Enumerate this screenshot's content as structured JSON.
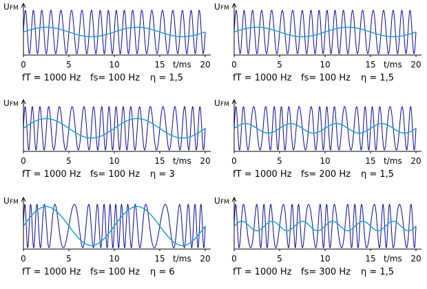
{
  "colors": {
    "carrier": "#0000a0",
    "modulating": "#1aa0c8",
    "axis": "#000000",
    "background": "#ffffff"
  },
  "chart_data": [
    {
      "type": "line",
      "title": "",
      "ylabel": "U",
      "ylabel_sub": "FM",
      "xlabel": "t/ms",
      "x_ticks": [
        "0",
        "5",
        "10",
        "15",
        "20"
      ],
      "xlim": [
        0,
        20
      ],
      "params": {
        "ft": 1000,
        "fs": 100,
        "eta": 1.5
      },
      "caption": {
        "ft": "fT = 1000 Hz",
        "fs": "fs= 100 Hz",
        "eta": "η = 1,5"
      },
      "series": [
        {
          "name": "FM carrier",
          "freq_hz": 1000
        },
        {
          "name": "modulating signal",
          "freq_hz": 100,
          "amplitude_fraction": 0.22
        }
      ]
    },
    {
      "type": "line",
      "title": "",
      "ylabel": "U",
      "ylabel_sub": "FM",
      "xlabel": "t/ms",
      "x_ticks": [
        "0",
        "5",
        "10",
        "15",
        "20"
      ],
      "xlim": [
        0,
        20
      ],
      "params": {
        "ft": 1000,
        "fs": 100,
        "eta": 1.5
      },
      "caption": {
        "ft": "fT = 1000 Hz",
        "fs": "fs= 100 Hz",
        "eta": "η = 1,5"
      },
      "series": [
        {
          "name": "FM carrier",
          "freq_hz": 1000
        },
        {
          "name": "modulating signal",
          "freq_hz": 100,
          "amplitude_fraction": 0.22
        }
      ]
    },
    {
      "type": "line",
      "title": "",
      "ylabel": "U",
      "ylabel_sub": "FM",
      "xlabel": "t/ms",
      "x_ticks": [
        "0",
        "5",
        "10",
        "15",
        "20"
      ],
      "xlim": [
        0,
        20
      ],
      "params": {
        "ft": 1000,
        "fs": 100,
        "eta": 3
      },
      "caption": {
        "ft": "fT = 1000 Hz",
        "fs": "fs= 100 Hz",
        "eta": "η = 3"
      },
      "series": [
        {
          "name": "FM carrier",
          "freq_hz": 1000
        },
        {
          "name": "modulating signal",
          "freq_hz": 100,
          "amplitude_fraction": 0.45
        }
      ]
    },
    {
      "type": "line",
      "title": "",
      "ylabel": "U",
      "ylabel_sub": "FM",
      "xlabel": "t/ms",
      "x_ticks": [
        "0",
        "5",
        "10",
        "15",
        "20"
      ],
      "xlim": [
        0,
        20
      ],
      "params": {
        "ft": 1000,
        "fs": 200,
        "eta": 1.5
      },
      "caption": {
        "ft": "fT = 1000 Hz",
        "fs": "fs= 200 Hz",
        "eta": "η = 1,5"
      },
      "series": [
        {
          "name": "FM carrier",
          "freq_hz": 1000
        },
        {
          "name": "modulating signal",
          "freq_hz": 200,
          "amplitude_fraction": 0.22
        }
      ]
    },
    {
      "type": "line",
      "title": "",
      "ylabel": "U",
      "ylabel_sub": "FM",
      "xlabel": "t/ms",
      "x_ticks": [
        "0",
        "5",
        "10",
        "15",
        "20"
      ],
      "xlim": [
        0,
        20
      ],
      "params": {
        "ft": 1000,
        "fs": 100,
        "eta": 6
      },
      "caption": {
        "ft": "fT = 1000 Hz",
        "fs": "fs= 100 Hz",
        "eta": "η = 6"
      },
      "series": [
        {
          "name": "FM carrier",
          "freq_hz": 1000
        },
        {
          "name": "modulating signal",
          "freq_hz": 100,
          "amplitude_fraction": 0.9
        }
      ]
    },
    {
      "type": "line",
      "title": "",
      "ylabel": "U",
      "ylabel_sub": "FM",
      "xlabel": "t/ms",
      "x_ticks": [
        "0",
        "5",
        "10",
        "15",
        "20"
      ],
      "xlim": [
        0,
        20
      ],
      "params": {
        "ft": 1000,
        "fs": 300,
        "eta": 1.5
      },
      "caption": {
        "ft": "fT = 1000 Hz",
        "fs": "fs= 300 Hz",
        "eta": "η = 1,5"
      },
      "series": [
        {
          "name": "FM carrier",
          "freq_hz": 1000
        },
        {
          "name": "modulating signal",
          "freq_hz": 300,
          "amplitude_fraction": 0.22
        }
      ]
    }
  ]
}
